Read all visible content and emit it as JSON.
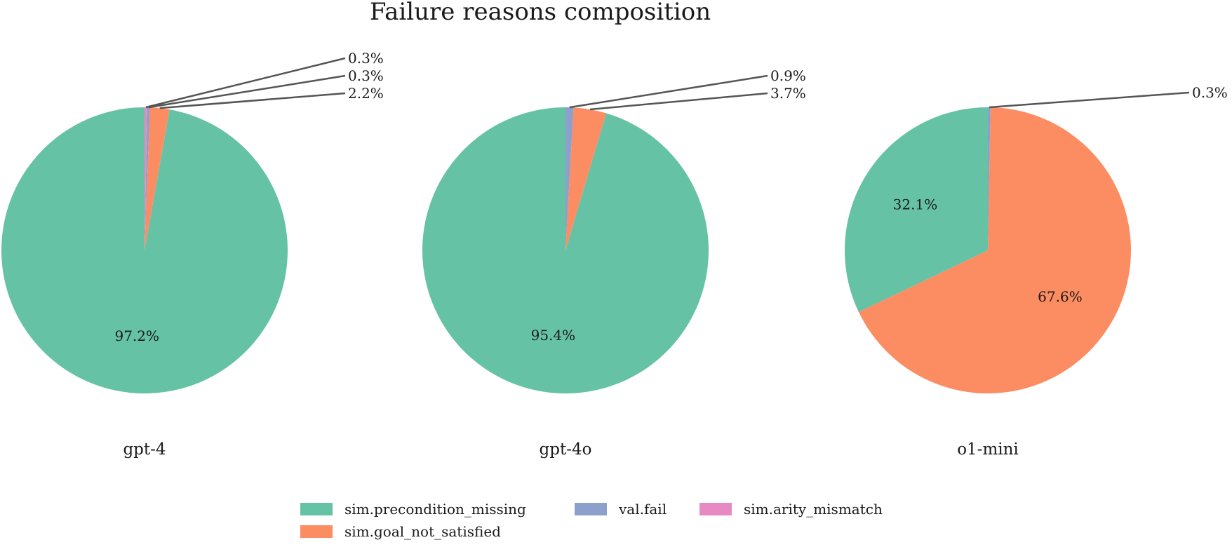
{
  "chart_data": {
    "type": "pie",
    "title": "Failure reasons composition",
    "legend": {
      "placement": "bottom-center",
      "entries": [
        {
          "label": "sim.precondition_missing",
          "color": "#66c2a5"
        },
        {
          "label": "sim.goal_not_satisfied",
          "color": "#fc8d62"
        },
        {
          "label": "val.fail",
          "color": "#8da0cb"
        },
        {
          "label": "sim.arity_mismatch",
          "color": "#e78ac3"
        }
      ]
    },
    "pies": [
      {
        "name": "gpt-4",
        "values": [
          97.2,
          2.2,
          0.3,
          0.3
        ],
        "labels": [
          "97.2%",
          "2.2%",
          "0.3%",
          "0.3%"
        ]
      },
      {
        "name": "gpt-4o",
        "values": [
          95.4,
          3.7,
          0.9,
          0
        ],
        "labels": [
          "95.4%",
          "3.7%",
          "0.9%",
          ""
        ]
      },
      {
        "name": "o1-mini",
        "values": [
          32.1,
          67.6,
          0.3,
          0
        ],
        "labels": [
          "32.1%",
          "67.6%",
          "0.3%",
          ""
        ]
      }
    ]
  }
}
